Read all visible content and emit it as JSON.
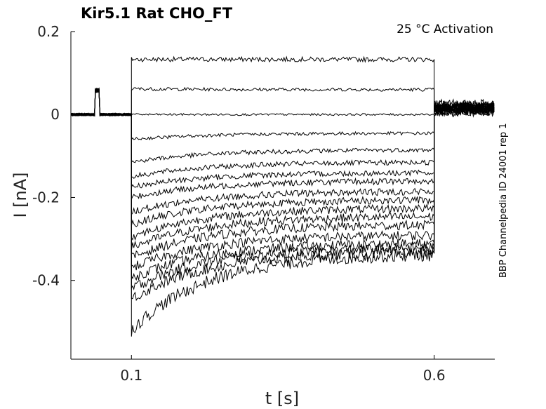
{
  "chart_data": {
    "type": "line",
    "title": "Kir5.1  Rat  CHO_FT",
    "annotation": "25 °C  Activation",
    "side_label": "BBP Channelpedia ID 24001 rep 1",
    "xlabel": "t [s]",
    "ylabel": "I [nA]",
    "xlim": [
      0.0,
      0.7
    ],
    "ylim": [
      -0.59,
      0.2
    ],
    "x_ticks": [
      "0.1",
      "0.6"
    ],
    "y_ticks": [
      "0.2",
      "0",
      "-0.2",
      "-0.4"
    ],
    "x_tick_values": [
      0.1,
      0.6
    ],
    "y_tick_values": [
      0.2,
      0,
      -0.2,
      -0.4
    ],
    "grid": false,
    "legend": "none",
    "pulse": {
      "start": 0.1,
      "end": 0.6,
      "prepulse_start": 0.04,
      "prepulse_end": 0.047,
      "prepulse_level": 0.058
    },
    "series": [
      {
        "values": {
          "step_start": 0.133,
          "step_end": 0.133,
          "tail": 0.012
        }
      },
      {
        "values": {
          "step_start": 0.062,
          "step_end": 0.06,
          "tail": 0.014
        }
      },
      {
        "values": {
          "step_start": 0.0,
          "step_end": 0.0,
          "tail": 0.016
        }
      },
      {
        "values": {
          "step_start": -0.06,
          "step_end": -0.045,
          "tail": 0.018
        }
      },
      {
        "values": {
          "step_start": -0.115,
          "step_end": -0.085,
          "tail": 0.01
        }
      },
      {
        "values": {
          "step_start": -0.15,
          "step_end": -0.115,
          "tail": 0.02
        }
      },
      {
        "values": {
          "step_start": -0.175,
          "step_end": -0.14,
          "tail": 0.008
        }
      },
      {
        "values": {
          "step_start": -0.2,
          "step_end": -0.16,
          "tail": 0.022
        }
      },
      {
        "values": {
          "step_start": -0.235,
          "step_end": -0.185,
          "tail": 0.006
        }
      },
      {
        "values": {
          "step_start": -0.265,
          "step_end": -0.205,
          "tail": 0.024
        }
      },
      {
        "values": {
          "step_start": -0.295,
          "step_end": -0.225,
          "tail": 0.01
        }
      },
      {
        "values": {
          "step_start": -0.32,
          "step_end": -0.245,
          "tail": 0.026
        }
      },
      {
        "values": {
          "step_start": -0.345,
          "step_end": -0.265,
          "tail": 0.004
        }
      },
      {
        "values": {
          "step_start": -0.37,
          "step_end": -0.29,
          "tail": 0.02
        }
      },
      {
        "values": {
          "step_start": -0.395,
          "step_end": -0.31,
          "tail": 0.012
        }
      },
      {
        "values": {
          "step_start": -0.42,
          "step_end": -0.32,
          "tail": 0.018
        }
      },
      {
        "values": {
          "step_start": -0.445,
          "step_end": -0.33,
          "tail": 0.014
        }
      },
      {
        "values": {
          "step_start": -0.52,
          "step_end": -0.335,
          "tail": 0.016
        }
      }
    ]
  }
}
